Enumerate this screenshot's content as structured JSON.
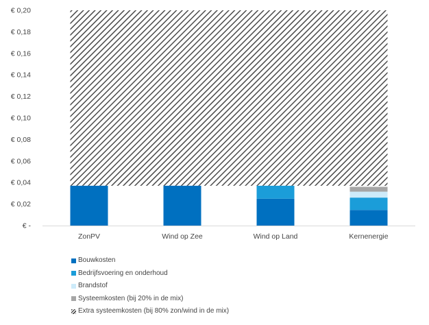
{
  "chart_data": {
    "type": "bar",
    "stacked": true,
    "title": "",
    "xlabel": "",
    "ylabel": "",
    "ylim": [
      0,
      0.2
    ],
    "yticks": [
      0,
      0.02,
      0.04,
      0.06,
      0.08,
      0.1,
      0.12,
      0.14,
      0.16,
      0.18,
      0.2
    ],
    "ytick_labels": [
      "€ -",
      "€ 0,02",
      "€ 0,04",
      "€ 0,06",
      "€ 0,08",
      "€ 0,10",
      "€ 0,12",
      "€ 0,14",
      "€ 0,16",
      "€ 0,18",
      "€ 0,20"
    ],
    "categories": [
      "ZonPV",
      "Wind op Zee",
      "Wind op Land",
      "Kernenergie"
    ],
    "series": [
      {
        "name": "Bouwkosten",
        "color": "#0070C0",
        "values": [
          0.037,
          0.037,
          0.025,
          0.0145
        ]
      },
      {
        "name": "Bedrijfsvoering en onderhoud",
        "color": "#1B9DD9",
        "values": [
          0,
          0,
          0.012,
          0.0115
        ]
      },
      {
        "name": "Brandstof",
        "color": "#CDEBFA",
        "values": [
          0,
          0,
          0,
          0.0055
        ]
      },
      {
        "name": "Systeemkosten (bij 20% in de mix)",
        "color": "#A6A6A6",
        "values": [
          0,
          0,
          0,
          0.0045
        ]
      },
      {
        "name": "Extra systeemkosten (bij 80% zon/wind in de mix)",
        "color": "#4A4A4A",
        "pattern": "diagonal-hatch",
        "values": [
          0.163,
          0.163,
          0.163,
          0.163
        ]
      }
    ],
    "hatched_band_spans_all_categories": true,
    "grid": false,
    "legend": "bottom-left"
  }
}
